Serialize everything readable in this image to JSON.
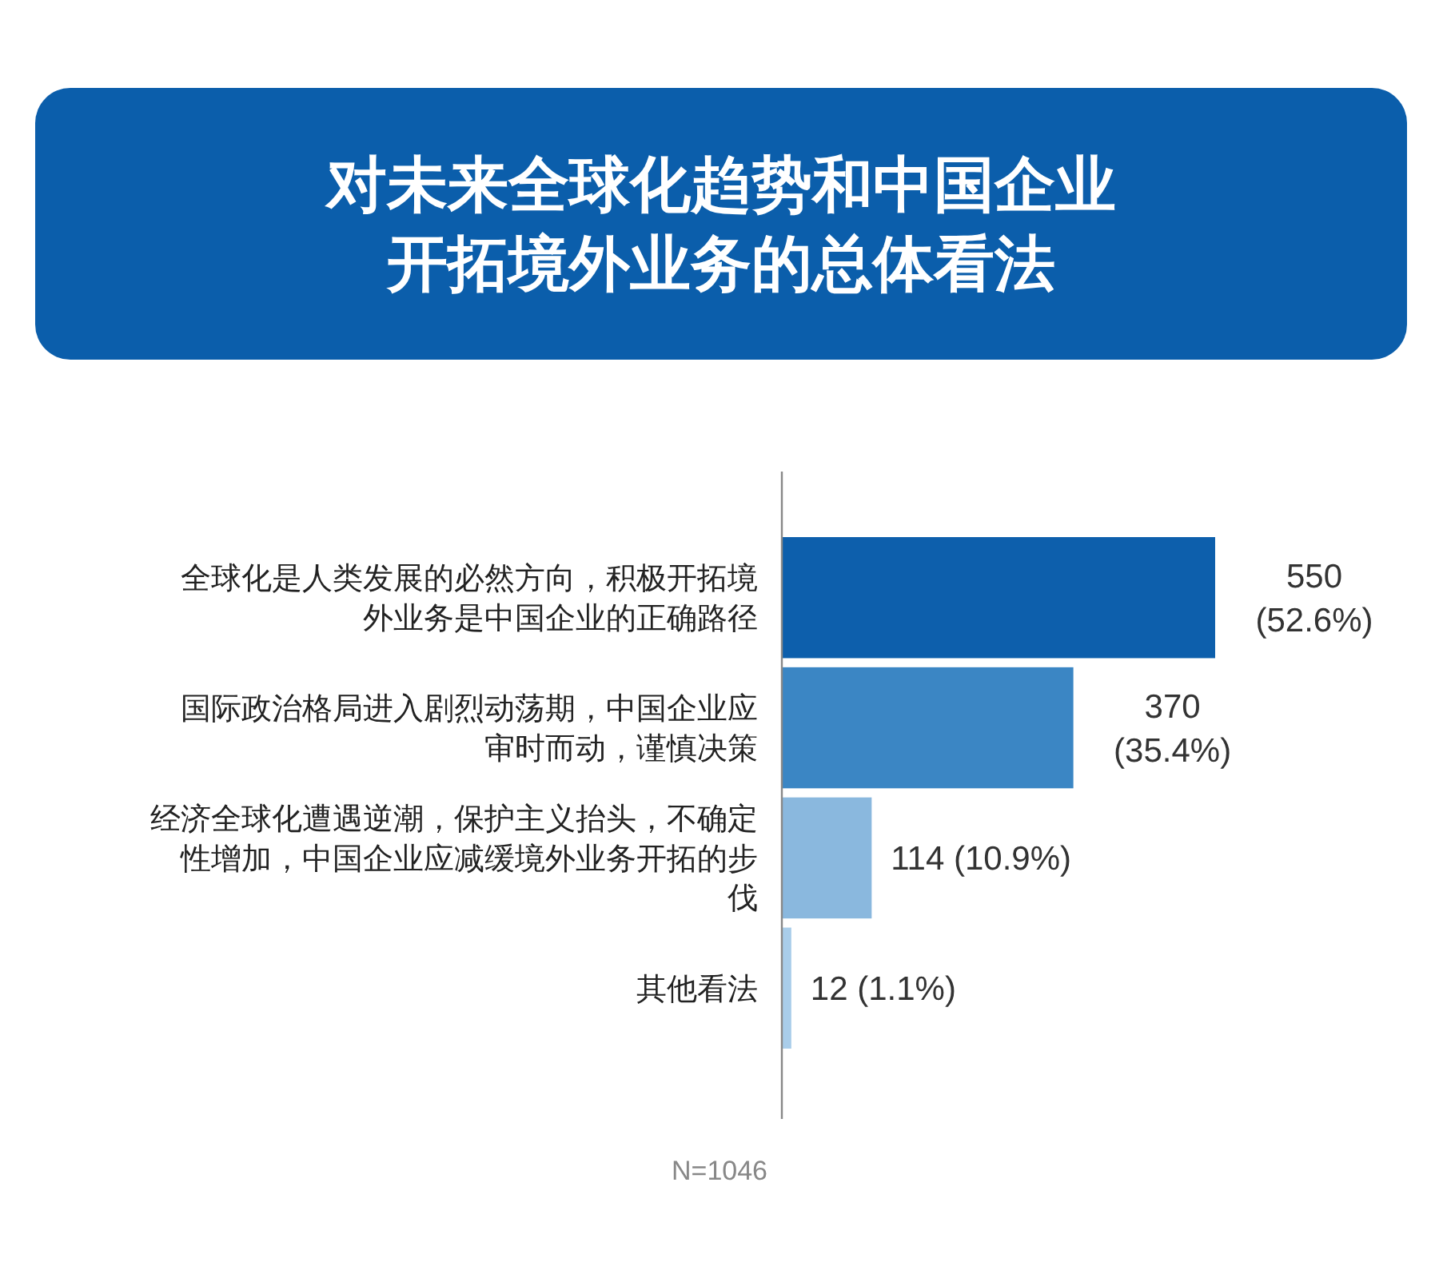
{
  "chart_data": {
    "type": "bar",
    "orientation": "horizontal",
    "title": "对未来全球化趋势和中国企业开拓境外业务的总体看法",
    "categories": [
      "全球化是人类发展的必然方向，积极开拓境外业务是中国企业的正确路径",
      "国际政治格局进入剧烈动荡期，中国企业应审时而动，谨慎决策",
      "经济全球化遭遇逆潮，保护主义抬头，不确定性增加，中国企业应减缓境外业务开拓的步伐",
      "其他看法"
    ],
    "values": [
      550,
      370,
      114,
      12
    ],
    "colors": [
      "#0d5fac",
      "#3b86c4",
      "#8ab8de",
      "#a9cdea"
    ],
    "value_labels": [
      "550 (52.6%)",
      "370 (35.4%)",
      "114 (10.9%)",
      "12 (1.1%)"
    ],
    "annotations": [
      "N=1046"
    ]
  }
}
